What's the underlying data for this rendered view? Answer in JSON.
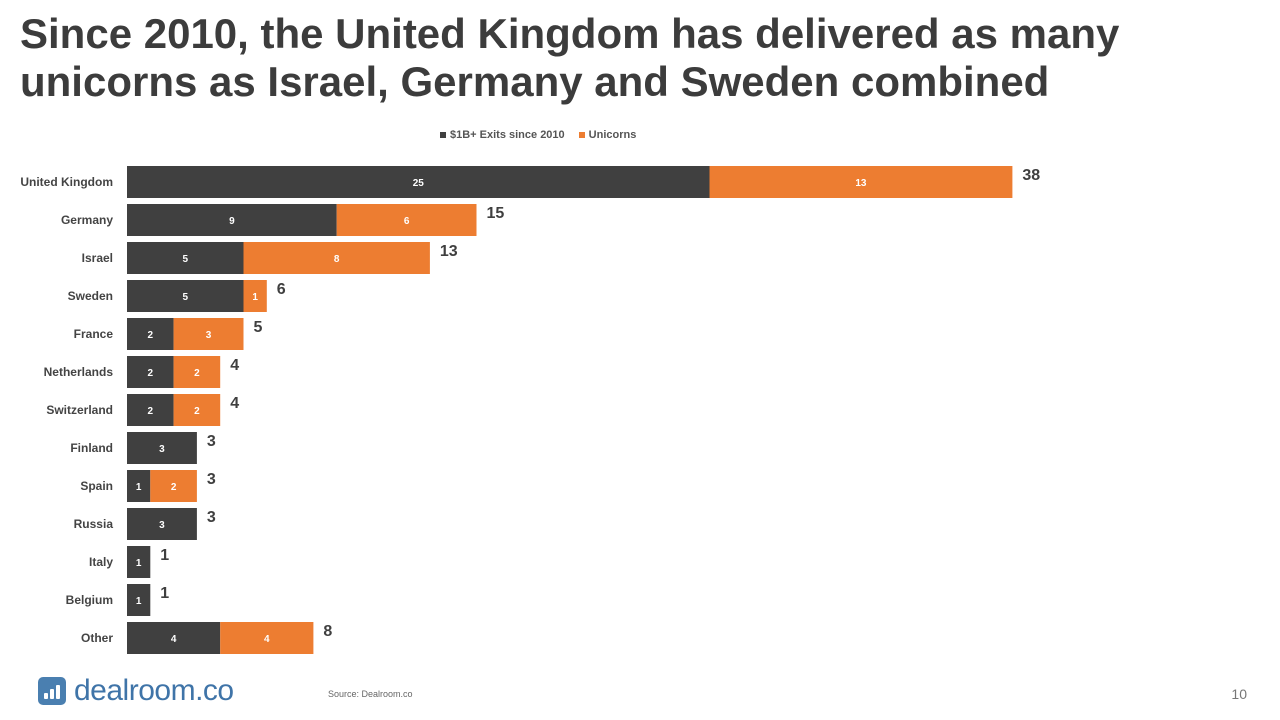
{
  "slide": {
    "title": "Since 2010, the United Kingdom has delivered as many unicorns as Israel, Germany and Sweden combined",
    "source": "Source: Dealroom.co",
    "page_number": "10",
    "logo_text": "dealroom.co"
  },
  "colors": {
    "exits": "#404040",
    "unicorns": "#ed7d31"
  },
  "chart_data": {
    "type": "bar",
    "orientation": "horizontal",
    "stacked": true,
    "title": "",
    "xlabel": "",
    "ylabel": "",
    "legend_position": "top-center",
    "grid": false,
    "xlim": [
      0,
      38
    ],
    "categories": [
      "United Kingdom",
      "Germany",
      "Israel",
      "Sweden",
      "France",
      "Netherlands",
      "Switzerland",
      "Finland",
      "Spain",
      "Russia",
      "Italy",
      "Belgium",
      "Other"
    ],
    "series": [
      {
        "name": "$1B+ Exits since 2010",
        "values": [
          25,
          9,
          5,
          5,
          2,
          2,
          2,
          3,
          1,
          3,
          1,
          1,
          4
        ]
      },
      {
        "name": "Unicorns",
        "values": [
          13,
          6,
          8,
          1,
          3,
          2,
          2,
          0,
          2,
          0,
          0,
          0,
          4
        ]
      }
    ],
    "totals": [
      38,
      15,
      13,
      6,
      5,
      4,
      4,
      3,
      3,
      3,
      1,
      1,
      8
    ]
  }
}
